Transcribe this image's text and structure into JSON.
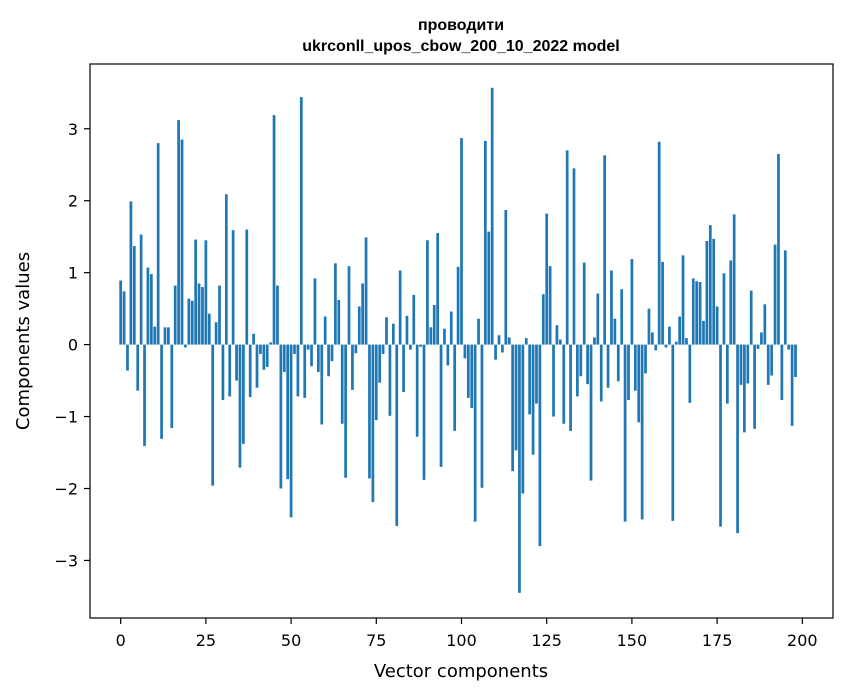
{
  "chart_data": {
    "type": "bar",
    "title": [
      "проводити",
      "ukrconll_upos_cbow_200_10_2022 model"
    ],
    "xlabel": "Vector components",
    "ylabel": "Components values",
    "xlim": [
      -9,
      209
    ],
    "ylim": [
      -3.8,
      3.9
    ],
    "x_ticks": [
      0,
      25,
      50,
      75,
      100,
      125,
      150,
      175,
      200
    ],
    "y_ticks": [
      -3,
      -2,
      -1,
      0,
      1,
      2,
      3
    ],
    "y_tick_labels": [
      "−3",
      "−2",
      "−1",
      "0",
      "1",
      "2",
      "3"
    ],
    "bar_color": "#1f77b4",
    "grid": false,
    "values": [
      0.89,
      0.74,
      -0.36,
      1.99,
      1.37,
      -0.64,
      1.53,
      -1.41,
      1.07,
      0.98,
      0.25,
      2.8,
      -1.31,
      0.24,
      0.24,
      -1.16,
      0.82,
      3.12,
      2.85,
      -0.04,
      0.64,
      0.61,
      1.46,
      0.85,
      0.8,
      1.45,
      0.43,
      -1.96,
      0.31,
      0.82,
      -0.77,
      2.09,
      -0.72,
      1.59,
      -0.5,
      -1.71,
      -1.38,
      1.6,
      -0.73,
      0.15,
      -0.6,
      -0.13,
      -0.35,
      -0.31,
      0.03,
      3.19,
      0.82,
      -2.0,
      -0.38,
      -1.87,
      -2.4,
      -0.13,
      -0.72,
      3.44,
      -0.74,
      -0.07,
      -0.3,
      0.92,
      -0.38,
      -1.11,
      0.39,
      -0.44,
      -0.23,
      1.13,
      0.62,
      -1.1,
      -1.85,
      1.09,
      -0.63,
      -0.12,
      0.53,
      0.85,
      1.49,
      -1.86,
      -2.19,
      -1.05,
      -0.53,
      -0.13,
      0.38,
      -0.99,
      0.29,
      -2.52,
      1.03,
      -0.66,
      0.4,
      -0.07,
      0.69,
      -1.28,
      -0.03,
      -1.88,
      1.45,
      0.24,
      0.55,
      1.55,
      -1.7,
      0.22,
      -0.29,
      0.46,
      -1.2,
      1.08,
      2.87,
      -0.19,
      -0.74,
      -0.88,
      -2.46,
      0.36,
      -1.99,
      2.83,
      1.57,
      3.57,
      -0.21,
      0.13,
      -0.11,
      1.87,
      0.1,
      -1.76,
      -1.47,
      -3.45,
      -2.07,
      0.09,
      -0.97,
      -1.53,
      -0.82,
      -2.8,
      0.7,
      1.82,
      1.09,
      -1.0,
      0.27,
      0.07,
      -1.1,
      2.7,
      -1.2,
      2.45,
      -0.72,
      -0.44,
      1.14,
      -0.55,
      -1.89,
      0.1,
      0.71,
      -0.79,
      2.63,
      -0.6,
      1.03,
      0.36,
      -0.51,
      0.77,
      -2.46,
      -0.77,
      1.19,
      -0.64,
      -1.08,
      -2.43,
      -0.4,
      0.5,
      0.17,
      -0.08,
      2.82,
      1.15,
      -0.04,
      0.25,
      -2.45,
      0.04,
      0.39,
      1.24,
      0.09,
      -0.81,
      0.92,
      0.88,
      0.87,
      0.33,
      1.44,
      1.66,
      1.47,
      0.53,
      -2.53,
      0.99,
      -0.82,
      1.17,
      1.81,
      -2.62,
      -0.56,
      -1.22,
      -0.54,
      0.75,
      -1.17,
      -0.06,
      0.17,
      0.56,
      -0.56,
      -0.43,
      1.39,
      2.65,
      -0.77,
      1.31,
      -0.07,
      -1.13,
      -0.45
    ]
  }
}
